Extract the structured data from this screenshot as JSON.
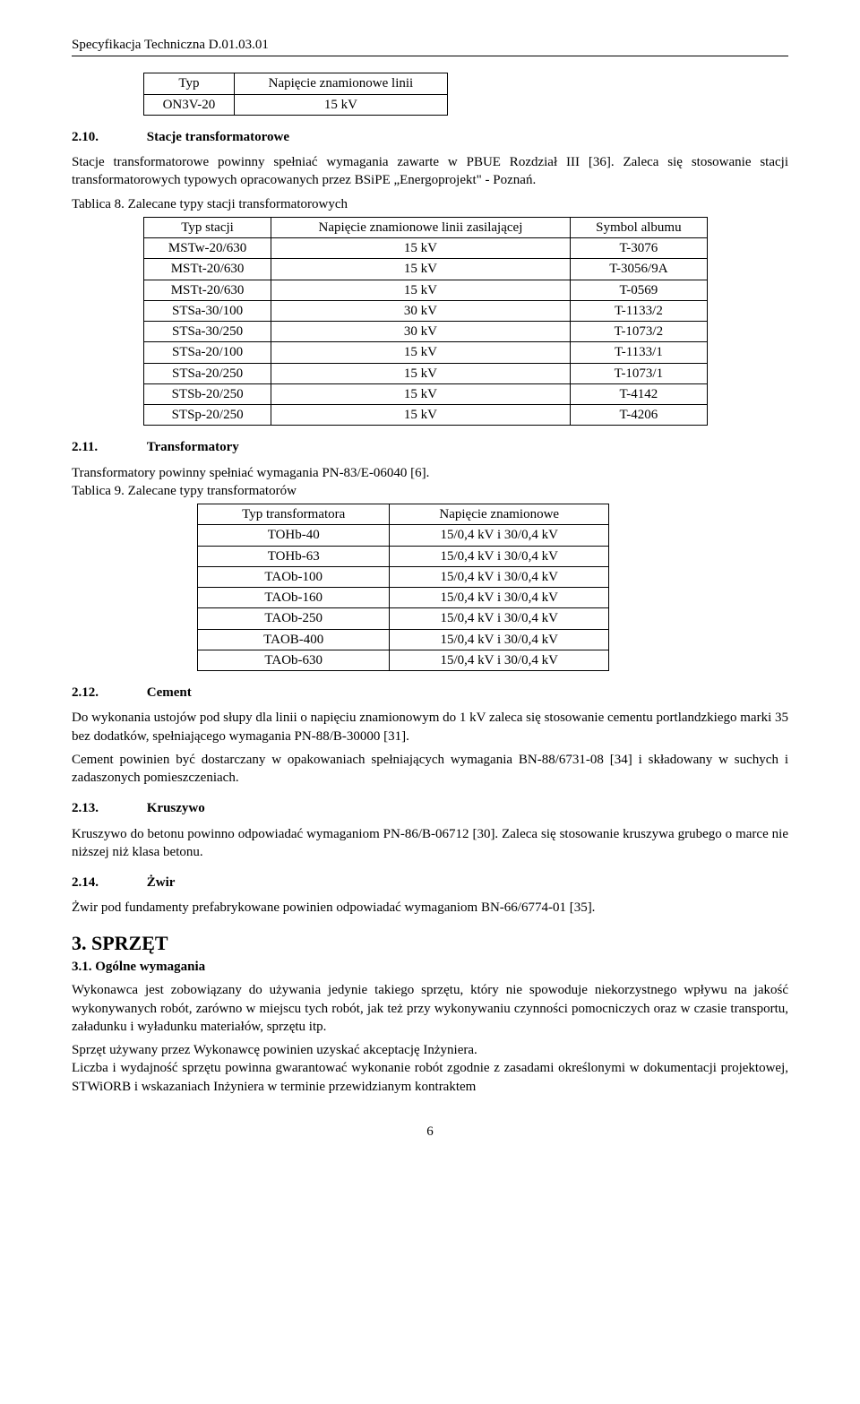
{
  "header": "Specyfikacja Techniczna D.01.03.01",
  "page_number": "6",
  "table0": {
    "headers": [
      "Typ",
      "Napięcie znamionowe linii"
    ],
    "rows": [
      [
        "ON3V-20",
        "15 kV"
      ]
    ]
  },
  "sec210": {
    "num": "2.10.",
    "title": "Stacje transformatorowe"
  },
  "para210": "Stacje transformatorowe powinny spełniać wymagania zawarte w PBUE Rozdział III [36]. Zaleca się stosowanie stacji transformatorowych typowych opracowanych przez BSiPE „Energoprojekt\" - Poznań.",
  "table8_caption": "Tablica 8. Zalecane typy stacji transformatorowych",
  "table8": {
    "headers": [
      "Typ stacji",
      "Napięcie znamionowe linii zasilającej",
      "Symbol albumu"
    ],
    "rows": [
      [
        "MSTw-20/630",
        "15 kV",
        "T-3076"
      ],
      [
        "MSTt-20/630",
        "15 kV",
        "T-3056/9A"
      ],
      [
        "MSTt-20/630",
        "15 kV",
        "T-0569"
      ],
      [
        "STSa-30/100",
        "30 kV",
        "T-1133/2"
      ],
      [
        "STSa-30/250",
        "30 kV",
        "T-1073/2"
      ],
      [
        "STSa-20/100",
        "15 kV",
        "T-1133/1"
      ],
      [
        "STSa-20/250",
        "15 kV",
        "T-1073/1"
      ],
      [
        "STSb-20/250",
        "15 kV",
        "T-4142"
      ],
      [
        "STSp-20/250",
        "15 kV",
        "T-4206"
      ]
    ]
  },
  "sec211": {
    "num": "2.11.",
    "title": "Transformatory"
  },
  "para211a": "Transformatory powinny spełniać wymagania PN-83/E-06040 [6].",
  "table9_caption": "Tablica 9. Zalecane typy transformatorów",
  "table9": {
    "headers": [
      "Typ transformatora",
      "Napięcie znamionowe"
    ],
    "rows": [
      [
        "TOHb-40",
        "15/0,4 kV i 30/0,4 kV"
      ],
      [
        "TOHb-63",
        "15/0,4 kV i 30/0,4 kV"
      ],
      [
        "TAOb-100",
        "15/0,4 kV i 30/0,4 kV"
      ],
      [
        "TAOb-160",
        "15/0,4 kV i 30/0,4 kV"
      ],
      [
        "TAOb-250",
        "15/0,4 kV i 30/0,4 kV"
      ],
      [
        "TAOB-400",
        "15/0,4 kV i 30/0,4 kV"
      ],
      [
        "TAOb-630",
        "15/0,4 kV i 30/0,4 kV"
      ]
    ]
  },
  "sec212": {
    "num": "2.12.",
    "title": "Cement"
  },
  "para212a": "Do wykonania ustojów pod słupy dla linii o napięciu znamionowym do 1 kV zaleca się stosowanie cementu portlandzkiego marki 35 bez dodatków, spełniającego wymagania PN-88/B-30000 [31].",
  "para212b": "Cement powinien być dostarczany w opakowaniach spełniających wymagania BN-88/6731-08 [34] i składowany w suchych i zadaszonych pomieszczeniach.",
  "sec213": {
    "num": "2.13.",
    "title": "Kruszywo"
  },
  "para213": "Kruszywo do betonu powinno odpowiadać wymaganiom PN-86/B-06712 [30]. Zaleca się stosowanie kruszywa grubego o marce nie niższej niż klasa betonu.",
  "sec214": {
    "num": "2.14.",
    "title": "Żwir"
  },
  "para214": "Żwir pod fundamenty prefabrykowane powinien odpowiadać wymaganiom BN-66/6774-01 [35].",
  "sec3": {
    "title": "3.  SPRZĘT"
  },
  "sec31": {
    "title": "3.1. Ogólne wymagania"
  },
  "para31a": "Wykonawca jest zobowiązany do używania jedynie takiego sprzętu, który nie spowoduje niekorzystnego wpływu na jakość wykonywanych robót, zarówno w miejscu tych robót, jak też przy wykonywaniu czynności pomocniczych oraz w czasie transportu, załadunku i wyładunku materiałów, sprzętu itp.",
  "para31b": "Sprzęt używany przez Wykonawcę powinien uzyskać akceptację Inżyniera.",
  "para31c": "Liczba i wydajność sprzętu powinna gwarantować wykonanie robót zgodnie z zasadami określonymi w dokumentacji projektowej, STWiORB i wskazaniach Inżyniera w terminie przewidzianym kontraktem"
}
